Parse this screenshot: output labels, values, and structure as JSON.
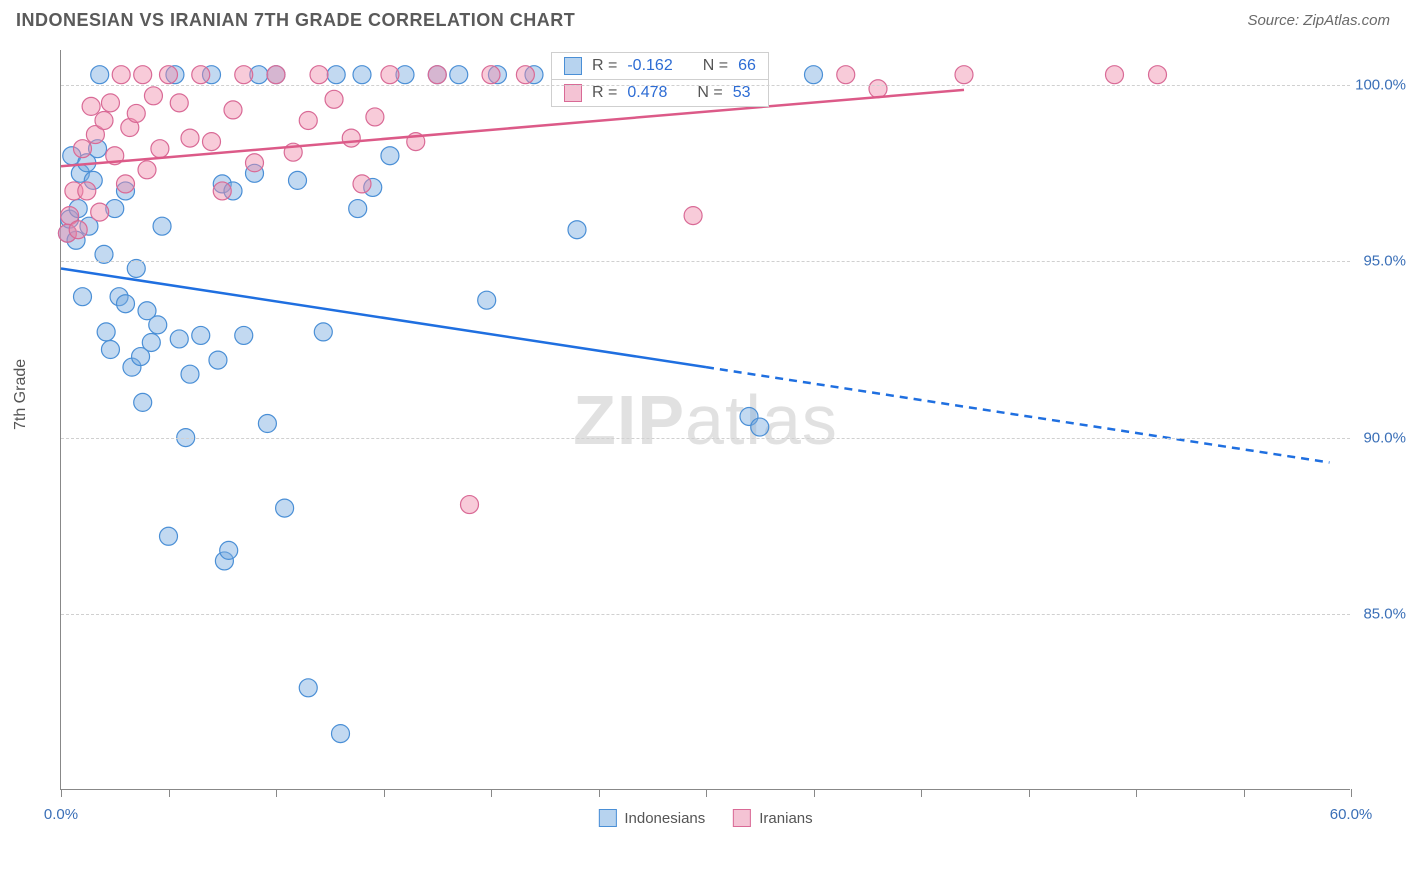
{
  "header": {
    "title": "INDONESIAN VS IRANIAN 7TH GRADE CORRELATION CHART",
    "source": "Source: ZipAtlas.com"
  },
  "chart": {
    "type": "scatter",
    "ylabel": "7th Grade",
    "xlim": [
      0,
      60
    ],
    "ylim": [
      80,
      101
    ],
    "xtick_positions": [
      0,
      5,
      10,
      15,
      20,
      25,
      30,
      35,
      40,
      45,
      50,
      55,
      60
    ],
    "xtick_labels": {
      "0": "0.0%",
      "60": "60.0%"
    },
    "ytick_positions": [
      85,
      90,
      95,
      100
    ],
    "ytick_labels": [
      "85.0%",
      "90.0%",
      "95.0%",
      "100.0%"
    ],
    "background_color": "#ffffff",
    "grid_color": "#d0d0d0",
    "axis_color": "#888888",
    "marker_radius": 9,
    "marker_stroke_width": 1.2,
    "series": [
      {
        "name": "Indonesians",
        "color_fill": "rgba(120,170,225,0.45)",
        "color_stroke": "#4a8fd6",
        "swatch_fill": "#b7d3ef",
        "swatch_border": "#4a8fd6",
        "R": "-0.162",
        "N": "66",
        "trend": {
          "color": "#1f6fe0",
          "width": 2.5,
          "solid_from_x": 0,
          "solid_to_x": 30,
          "dash_from_x": 30,
          "dash_to_x": 59,
          "y_at_0": 94.8,
          "y_at_60": 89.2
        },
        "points": [
          [
            0.3,
            95.8
          ],
          [
            0.4,
            96.2
          ],
          [
            0.5,
            98.0
          ],
          [
            0.7,
            95.6
          ],
          [
            0.8,
            96.5
          ],
          [
            0.9,
            97.5
          ],
          [
            1.0,
            94.0
          ],
          [
            1.2,
            97.8
          ],
          [
            1.3,
            96.0
          ],
          [
            1.5,
            97.3
          ],
          [
            1.7,
            98.2
          ],
          [
            1.8,
            100.3
          ],
          [
            2.0,
            95.2
          ],
          [
            2.1,
            93.0
          ],
          [
            2.3,
            92.5
          ],
          [
            2.5,
            96.5
          ],
          [
            2.7,
            94.0
          ],
          [
            3.0,
            97.0
          ],
          [
            3.0,
            93.8
          ],
          [
            3.3,
            92.0
          ],
          [
            3.5,
            94.8
          ],
          [
            3.7,
            92.3
          ],
          [
            3.8,
            91.0
          ],
          [
            4.0,
            93.6
          ],
          [
            4.2,
            92.7
          ],
          [
            4.5,
            93.2
          ],
          [
            4.7,
            96.0
          ],
          [
            5.0,
            87.2
          ],
          [
            5.3,
            100.3
          ],
          [
            5.5,
            92.8
          ],
          [
            5.8,
            90.0
          ],
          [
            6.0,
            91.8
          ],
          [
            6.5,
            92.9
          ],
          [
            7.0,
            100.3
          ],
          [
            7.3,
            92.2
          ],
          [
            7.5,
            97.2
          ],
          [
            7.6,
            86.5
          ],
          [
            7.8,
            86.8
          ],
          [
            8.0,
            97.0
          ],
          [
            8.5,
            92.9
          ],
          [
            9.0,
            97.5
          ],
          [
            9.2,
            100.3
          ],
          [
            9.6,
            90.4
          ],
          [
            10.0,
            100.3
          ],
          [
            10.4,
            88.0
          ],
          [
            11.0,
            97.3
          ],
          [
            11.5,
            82.9
          ],
          [
            12.2,
            93.0
          ],
          [
            12.8,
            100.3
          ],
          [
            13.0,
            81.6
          ],
          [
            13.8,
            96.5
          ],
          [
            14.0,
            100.3
          ],
          [
            14.5,
            97.1
          ],
          [
            15.3,
            98.0
          ],
          [
            16.0,
            100.3
          ],
          [
            17.5,
            100.3
          ],
          [
            18.5,
            100.3
          ],
          [
            19.8,
            93.9
          ],
          [
            20.3,
            100.3
          ],
          [
            22.0,
            100.3
          ],
          [
            24.0,
            95.9
          ],
          [
            27.5,
            100.3
          ],
          [
            29.5,
            100.3
          ],
          [
            32.0,
            90.6
          ],
          [
            32.5,
            90.3
          ],
          [
            35.0,
            100.3
          ]
        ]
      },
      {
        "name": "Iranians",
        "color_fill": "rgba(240,140,170,0.45)",
        "color_stroke": "#d96a96",
        "swatch_fill": "#f4c3d4",
        "swatch_border": "#d96a96",
        "R": "0.478",
        "N": "53",
        "trend": {
          "color": "#dc5a88",
          "width": 2.5,
          "solid_from_x": 0,
          "solid_to_x": 42,
          "dash_from_x": 42,
          "dash_to_x": 42,
          "y_at_0": 97.7,
          "y_at_60": 100.8
        },
        "points": [
          [
            0.3,
            95.8
          ],
          [
            0.4,
            96.3
          ],
          [
            0.6,
            97.0
          ],
          [
            0.8,
            95.9
          ],
          [
            1.0,
            98.2
          ],
          [
            1.2,
            97.0
          ],
          [
            1.4,
            99.4
          ],
          [
            1.6,
            98.6
          ],
          [
            1.8,
            96.4
          ],
          [
            2.0,
            99.0
          ],
          [
            2.3,
            99.5
          ],
          [
            2.5,
            98.0
          ],
          [
            2.8,
            100.3
          ],
          [
            3.0,
            97.2
          ],
          [
            3.2,
            98.8
          ],
          [
            3.5,
            99.2
          ],
          [
            3.8,
            100.3
          ],
          [
            4.0,
            97.6
          ],
          [
            4.3,
            99.7
          ],
          [
            4.6,
            98.2
          ],
          [
            5.0,
            100.3
          ],
          [
            5.5,
            99.5
          ],
          [
            6.0,
            98.5
          ],
          [
            6.5,
            100.3
          ],
          [
            7.0,
            98.4
          ],
          [
            7.5,
            97.0
          ],
          [
            8.0,
            99.3
          ],
          [
            8.5,
            100.3
          ],
          [
            9.0,
            97.8
          ],
          [
            10.0,
            100.3
          ],
          [
            10.8,
            98.1
          ],
          [
            11.5,
            99.0
          ],
          [
            12.0,
            100.3
          ],
          [
            12.7,
            99.6
          ],
          [
            13.5,
            98.5
          ],
          [
            14.0,
            97.2
          ],
          [
            14.6,
            99.1
          ],
          [
            15.3,
            100.3
          ],
          [
            16.5,
            98.4
          ],
          [
            17.5,
            100.3
          ],
          [
            19.0,
            88.1
          ],
          [
            20.0,
            100.3
          ],
          [
            21.6,
            100.3
          ],
          [
            23.5,
            100.3
          ],
          [
            24.5,
            99.8
          ],
          [
            27.5,
            100.3
          ],
          [
            29.4,
            96.3
          ],
          [
            32.0,
            100.3
          ],
          [
            36.5,
            100.3
          ],
          [
            38.0,
            99.9
          ],
          [
            42.0,
            100.3
          ],
          [
            49.0,
            100.3
          ],
          [
            51.0,
            100.3
          ]
        ]
      }
    ],
    "legend_top": {
      "r_label": "R =",
      "n_label": "N ="
    },
    "legend_bottom": {
      "items": [
        "Indonesians",
        "Iranians"
      ]
    },
    "watermark": {
      "zip": "ZIP",
      "atlas": "atlas"
    }
  }
}
